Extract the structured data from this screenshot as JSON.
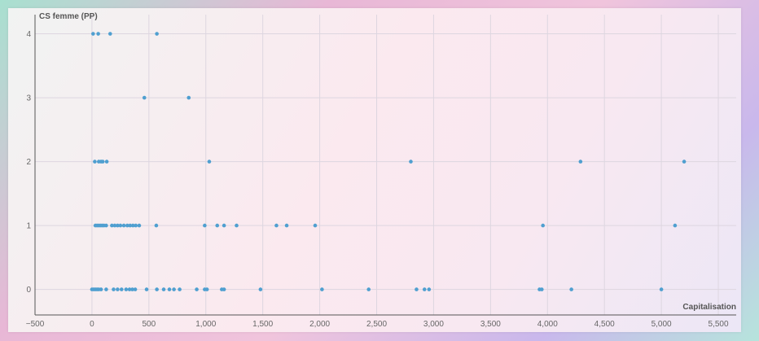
{
  "chart_data": {
    "type": "scatter",
    "title": "",
    "xlabel": "Capitalisation",
    "ylabel": "CS femme (PP)",
    "xlim": [
      -500,
      5700
    ],
    "ylim": [
      -0.4,
      4.3
    ],
    "x_ticks": [
      -500,
      0,
      500,
      1000,
      1500,
      2000,
      2500,
      3000,
      3500,
      4000,
      4500,
      5000,
      5500
    ],
    "x_tick_labels": [
      "−500",
      "0",
      "500",
      "1,000",
      "1,500",
      "2,000",
      "2,500",
      "3,000",
      "3,500",
      "4,000",
      "4,500",
      "5,000",
      "5,500"
    ],
    "y_ticks": [
      0,
      1,
      2,
      3,
      4
    ],
    "y_tick_labels": [
      "0",
      "1",
      "2",
      "3",
      "4"
    ],
    "grid": true,
    "legend": "none",
    "point_color": "#4f9fd0",
    "series": [
      {
        "points": [
          [
            10,
            4
          ],
          [
            55,
            4
          ],
          [
            160,
            4
          ],
          [
            570,
            4
          ],
          [
            460,
            3
          ],
          [
            850,
            3
          ],
          [
            25,
            2
          ],
          [
            60,
            2
          ],
          [
            80,
            2
          ],
          [
            95,
            2
          ],
          [
            130,
            2
          ],
          [
            1030,
            2
          ],
          [
            2800,
            2
          ],
          [
            4290,
            2
          ],
          [
            5200,
            2
          ],
          [
            30,
            1
          ],
          [
            45,
            1
          ],
          [
            60,
            1
          ],
          [
            75,
            1
          ],
          [
            90,
            1
          ],
          [
            105,
            1
          ],
          [
            125,
            1
          ],
          [
            175,
            1
          ],
          [
            200,
            1
          ],
          [
            225,
            1
          ],
          [
            250,
            1
          ],
          [
            280,
            1
          ],
          [
            310,
            1
          ],
          [
            335,
            1
          ],
          [
            360,
            1
          ],
          [
            385,
            1
          ],
          [
            415,
            1
          ],
          [
            565,
            1
          ],
          [
            990,
            1
          ],
          [
            1100,
            1
          ],
          [
            1160,
            1
          ],
          [
            1270,
            1
          ],
          [
            1620,
            1
          ],
          [
            1710,
            1
          ],
          [
            1960,
            1
          ],
          [
            3960,
            1
          ],
          [
            5120,
            1
          ],
          [
            0,
            0
          ],
          [
            15,
            0
          ],
          [
            30,
            0
          ],
          [
            45,
            0
          ],
          [
            60,
            0
          ],
          [
            80,
            0
          ],
          [
            125,
            0
          ],
          [
            190,
            0
          ],
          [
            225,
            0
          ],
          [
            260,
            0
          ],
          [
            300,
            0
          ],
          [
            330,
            0
          ],
          [
            355,
            0
          ],
          [
            380,
            0
          ],
          [
            480,
            0
          ],
          [
            570,
            0
          ],
          [
            630,
            0
          ],
          [
            680,
            0
          ],
          [
            720,
            0
          ],
          [
            770,
            0
          ],
          [
            920,
            0
          ],
          [
            990,
            0
          ],
          [
            1010,
            0
          ],
          [
            1140,
            0
          ],
          [
            1160,
            0
          ],
          [
            1480,
            0
          ],
          [
            2020,
            0
          ],
          [
            2430,
            0
          ],
          [
            2850,
            0
          ],
          [
            2920,
            0
          ],
          [
            2960,
            0
          ],
          [
            3930,
            0
          ],
          [
            3950,
            0
          ],
          [
            4210,
            0
          ],
          [
            5000,
            0
          ]
        ]
      }
    ]
  }
}
